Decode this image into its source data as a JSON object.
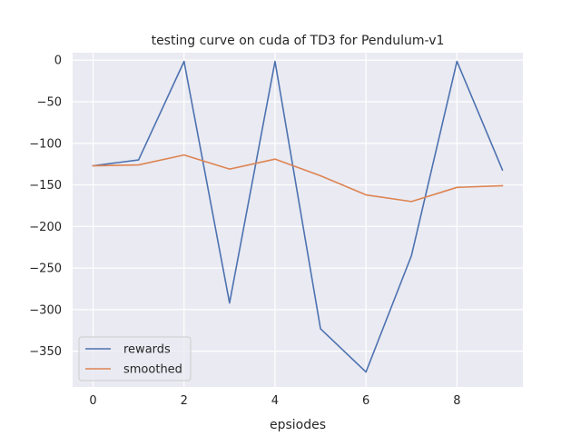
{
  "chart_data": {
    "type": "line",
    "title": "testing curve on cuda of TD3 for Pendulum-v1",
    "xlabel": "epsiodes",
    "ylabel": "",
    "x": [
      0,
      1,
      2,
      3,
      4,
      5,
      6,
      7,
      8,
      9
    ],
    "xticks": [
      0,
      2,
      4,
      6,
      8
    ],
    "yticks": [
      0,
      -50,
      -100,
      -150,
      -200,
      -250,
      -300,
      -350
    ],
    "xlim": [
      -0.45,
      9.45
    ],
    "ylim": [
      -393,
      9
    ],
    "grid": true,
    "legend_position": "lower-left",
    "series": [
      {
        "name": "rewards",
        "color": "#4c72b0",
        "values": [
          -127,
          -120,
          -1.5,
          -292,
          -1.5,
          -323,
          -375,
          -235,
          -1.5,
          -132
        ]
      },
      {
        "name": "smoothed",
        "color": "#dd8452",
        "values": [
          -127,
          -126,
          -114,
          -131,
          -119,
          -139,
          -162,
          -170,
          -153,
          -151
        ]
      }
    ]
  },
  "colors": {
    "plot_background": "#eaeaf2",
    "grid": "#ffffff"
  }
}
